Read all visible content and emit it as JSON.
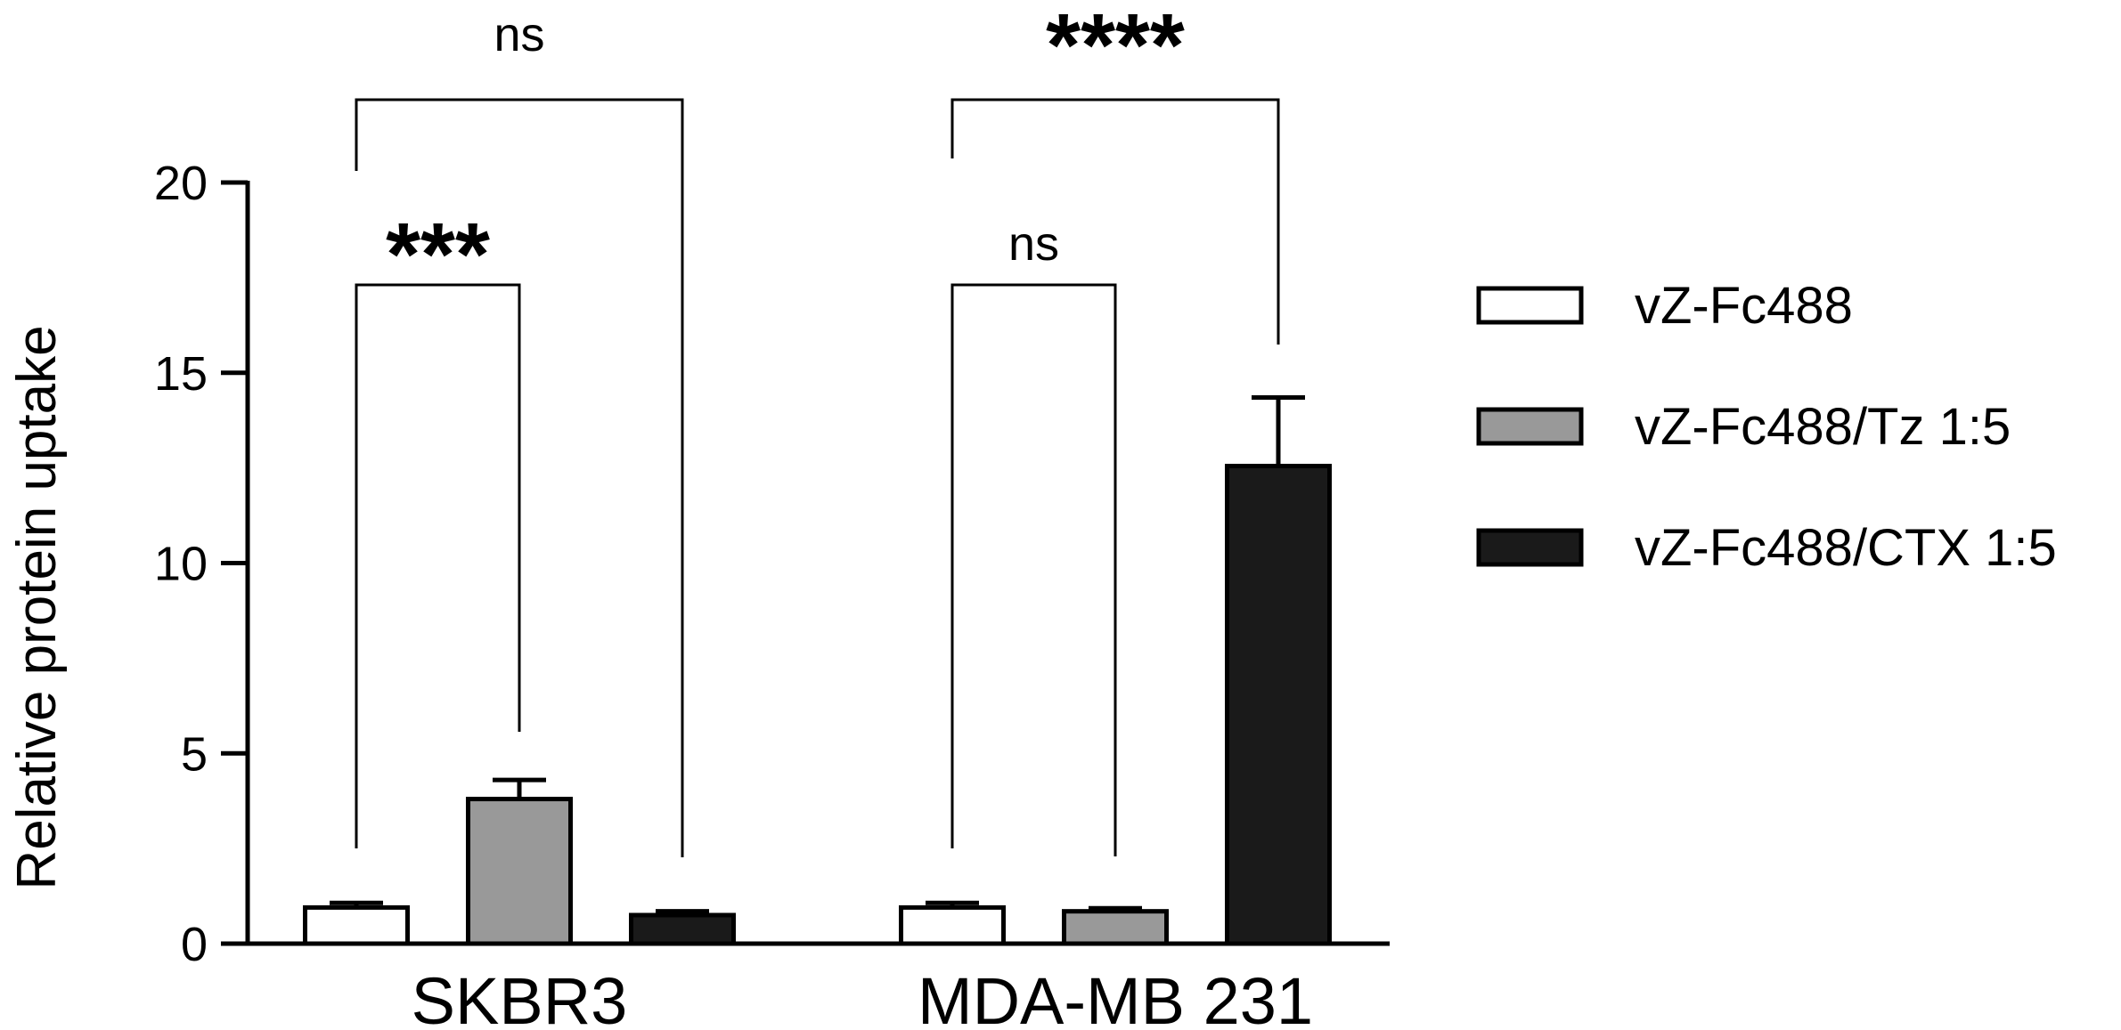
{
  "chart_data": {
    "type": "bar",
    "ylabel": "Relative protein uptake",
    "xlabel": "",
    "ylim": [
      0,
      20
    ],
    "yticks": [
      "0",
      "5",
      "10",
      "15",
      "20"
    ],
    "categories": [
      "SKBR3",
      "MDA-MB 231"
    ],
    "series": [
      {
        "name": "vZ-Fc488",
        "color": "#ffffff",
        "values": [
          0.95,
          0.95
        ],
        "errors": [
          0.12,
          0.12
        ]
      },
      {
        "name": "vZ-Fc488/Tz 1:5",
        "color": "#999999",
        "values": [
          3.8,
          0.85
        ],
        "errors": [
          0.5,
          0.08
        ]
      },
      {
        "name": "vZ-Fc488/CTX 1:5",
        "color": "#1a1a1a",
        "values": [
          0.75,
          12.55
        ],
        "errors": [
          0.1,
          1.8
        ]
      }
    ],
    "comparisons": [
      {
        "category": "SKBR3",
        "from": 0,
        "to": 2,
        "label": "ns"
      },
      {
        "category": "SKBR3",
        "from": 0,
        "to": 1,
        "label": "***"
      },
      {
        "category": "MDA-MB 231",
        "from": 0,
        "to": 2,
        "label": "****"
      },
      {
        "category": "MDA-MB 231",
        "from": 0,
        "to": 1,
        "label": "ns"
      }
    ],
    "legend_position": "right",
    "grid": false
  }
}
